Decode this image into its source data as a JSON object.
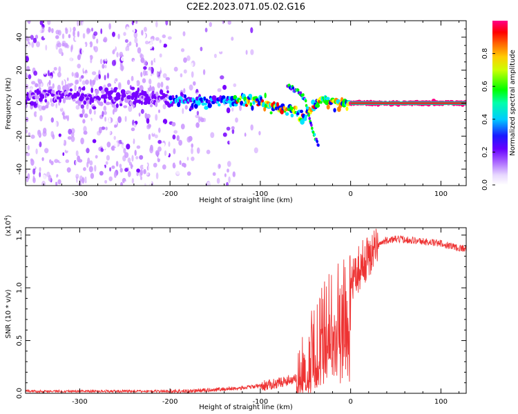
{
  "title": "C2E2.2023.071.05.02.G16",
  "chart_data": [
    {
      "type": "heatmap",
      "xlabel": "Height of straight line (km)",
      "ylabel": "Frequency (Hz)",
      "xlim": [
        -360,
        128
      ],
      "ylim": [
        -50,
        50
      ],
      "xticks": [
        -300,
        -200,
        -100,
        0,
        100
      ],
      "yticks": [
        -40,
        -20,
        0,
        20,
        40
      ],
      "colorbar": {
        "label": "Normalized spectral amplitude",
        "range": [
          0,
          1
        ],
        "ticks": [
          "0.0",
          "0.2",
          "0.4",
          "0.6",
          "0.8"
        ],
        "colors": [
          "#ffffff",
          "#cc99ff",
          "#7700ff",
          "#0000ff",
          "#00e5ff",
          "#00ff00",
          "#ffff00",
          "#ff8800",
          "#ff0000",
          "#ff0088"
        ]
      },
      "ridge": {
        "x": [
          -360,
          -300,
          -250,
          -200,
          -150,
          -130,
          -100,
          -80,
          -60,
          -50,
          -40,
          -30,
          -20,
          -10,
          0,
          50,
          128
        ],
        "frequency": [
          5,
          4,
          3,
          2,
          1,
          2,
          1,
          -3,
          -5,
          -8,
          -1,
          2,
          1,
          0,
          0,
          0,
          0
        ]
      },
      "branch": {
        "x": [
          -70,
          -60,
          -50,
          -45,
          -40,
          -35
        ],
        "frequency": [
          10,
          8,
          2,
          -10,
          -20,
          -26
        ]
      }
    },
    {
      "type": "line",
      "xlabel": "Height of straight line (km)",
      "ylabel": "SNR (10 * v/v)",
      "yscale_label": "(x10",
      "yscale_exp": "4",
      "yscale_close": ")",
      "xlim": [
        -360,
        128
      ],
      "ylim": [
        0,
        1.57
      ],
      "xticks": [
        -300,
        -200,
        -100,
        0,
        100
      ],
      "yticks": [
        "0.0",
        "0.5",
        "1.0",
        "1.5"
      ],
      "color": "#ee3333",
      "series": [
        {
          "x": [
            -360,
            -300,
            -250,
            -200,
            -180,
            -160,
            -140,
            -120,
            -100,
            -90,
            -80,
            -70,
            -60,
            -50,
            -45,
            -40,
            -35,
            -30,
            -25,
            -20,
            -15,
            -10,
            -5,
            0,
            5,
            10,
            15,
            20,
            25,
            30,
            35,
            40,
            50,
            60,
            70,
            80,
            90,
            100,
            110,
            120,
            128
          ],
          "y": [
            0.02,
            0.02,
            0.02,
            0.02,
            0.02,
            0.03,
            0.04,
            0.05,
            0.07,
            0.08,
            0.1,
            0.12,
            0.15,
            0.2,
            0.3,
            0.4,
            0.55,
            0.65,
            0.7,
            0.75,
            0.8,
            0.85,
            0.9,
            1.0,
            1.1,
            1.2,
            1.25,
            1.3,
            1.35,
            1.4,
            1.43,
            1.45,
            1.46,
            1.46,
            1.45,
            1.44,
            1.43,
            1.42,
            1.4,
            1.38,
            1.37
          ]
        }
      ]
    }
  ]
}
